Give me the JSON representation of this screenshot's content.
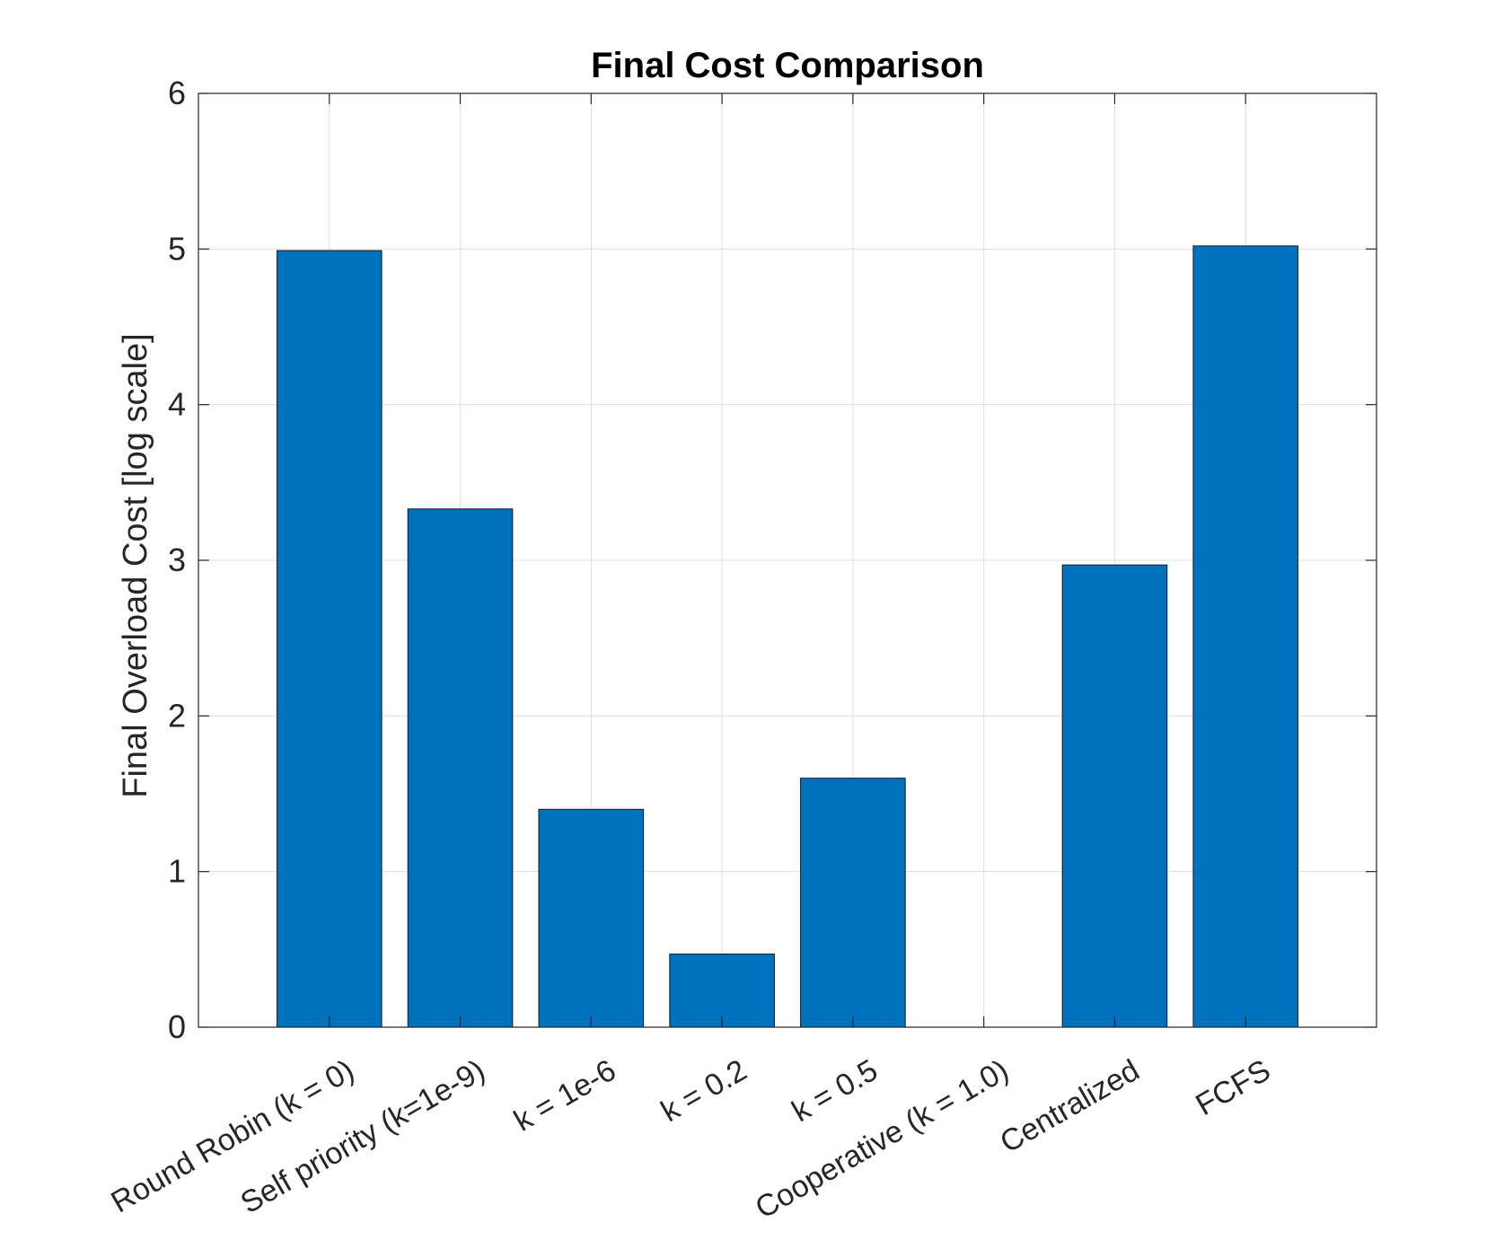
{
  "chart_data": {
    "type": "bar",
    "title": "Final Cost Comparison",
    "xlabel": "",
    "ylabel": "Final Overload Cost [log scale]",
    "categories": [
      "Round Robin (k = 0)",
      "Self priority (k=1e-9)",
      "k = 1e-6",
      "k = 0.2",
      "k = 0.5",
      "Cooperative (k = 1.0)",
      "Centralized",
      "FCFS"
    ],
    "values": [
      4.99,
      3.33,
      1.4,
      0.47,
      1.6,
      0,
      2.97,
      5.02
    ],
    "ylim": [
      0,
      6
    ],
    "yticks": [
      "0",
      "1",
      "2",
      "3",
      "4",
      "5",
      "6"
    ],
    "grid": true,
    "bar_color": "#0072bd"
  }
}
